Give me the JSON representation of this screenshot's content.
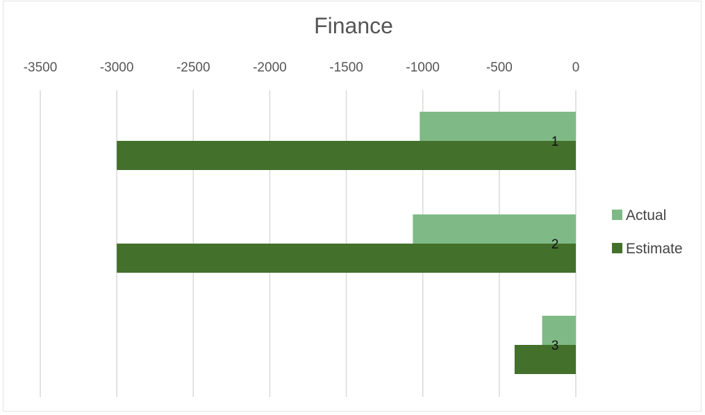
{
  "chart_data": {
    "type": "bar",
    "orientation": "horizontal",
    "title": "Finance",
    "categories": [
      "1",
      "2",
      "3"
    ],
    "series": [
      {
        "name": "Actual",
        "values": [
          -1020,
          -1065,
          -220
        ],
        "color": "#7fba86"
      },
      {
        "name": "Estimate",
        "values": [
          -3000,
          -3000,
          -400
        ],
        "color": "#43702b"
      }
    ],
    "xlim": [
      -3500,
      0
    ],
    "x_ticks": [
      -3500,
      -3000,
      -2500,
      -2000,
      -1500,
      -1000,
      -500,
      0
    ],
    "x_axis_position": "top",
    "grid": true,
    "legend_position": "right"
  }
}
